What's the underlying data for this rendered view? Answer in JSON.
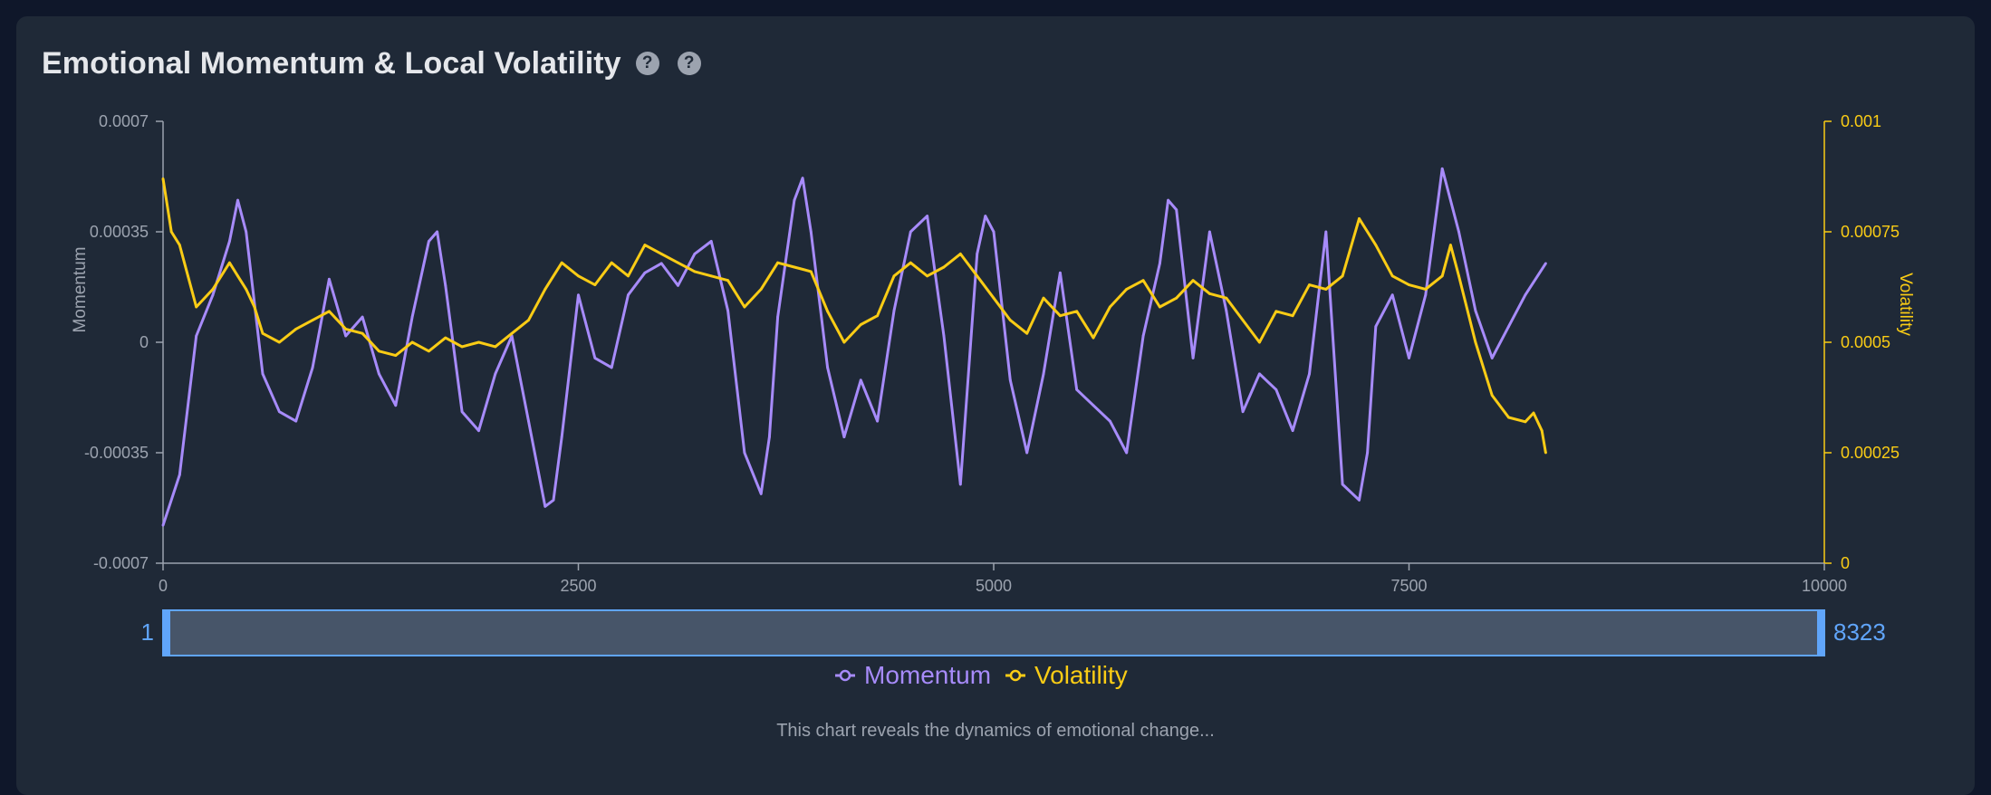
{
  "header": {
    "title": "Emotional Momentum & Local Volatility",
    "help_icons": [
      "question-circle-icon",
      "question-circle-icon"
    ]
  },
  "caption": "This chart reveals the dynamics of emotional change...",
  "colors": {
    "background": "#0f172a",
    "panel": "#1f2937",
    "momentum": "#a78bfa",
    "volatility": "#facc15",
    "axis": "#9ca3af",
    "brush": "#475569",
    "brush_accent": "#60a5fa"
  },
  "chart_data": {
    "type": "line",
    "title": "Emotional Momentum & Local Volatility",
    "xlabel": "",
    "xlim": [
      0,
      10000
    ],
    "x_ticks": [
      "0",
      "2500",
      "5000",
      "7500",
      "10000"
    ],
    "y_left": {
      "label": "Momentum",
      "range": [
        -0.0007,
        0.0007
      ],
      "ticks": [
        "0.0007",
        "0.00035",
        "0",
        "-0.00035",
        "-0.0007"
      ]
    },
    "y_right": {
      "label": "Volatility",
      "range": [
        0,
        0.001
      ],
      "ticks": [
        "0.001",
        "0.00075",
        "0.0005",
        "0.00025",
        "0"
      ]
    },
    "grid": false,
    "legend_position": "bottom-center",
    "brush": {
      "start_label": "1",
      "end_label": "8323",
      "start": 1,
      "end": 8323
    },
    "series": [
      {
        "name": "Momentum",
        "axis": "left",
        "x": [
          0,
          100,
          200,
          300,
          400,
          450,
          500,
          600,
          700,
          800,
          900,
          1000,
          1100,
          1200,
          1300,
          1400,
          1500,
          1600,
          1650,
          1700,
          1800,
          1900,
          2000,
          2100,
          2200,
          2300,
          2350,
          2400,
          2500,
          2600,
          2700,
          2800,
          2900,
          3000,
          3100,
          3200,
          3300,
          3400,
          3500,
          3600,
          3650,
          3700,
          3800,
          3850,
          3900,
          4000,
          4100,
          4200,
          4300,
          4400,
          4500,
          4600,
          4700,
          4800,
          4900,
          4950,
          5000,
          5100,
          5200,
          5300,
          5400,
          5500,
          5600,
          5700,
          5800,
          5900,
          6000,
          6050,
          6100,
          6200,
          6300,
          6400,
          6500,
          6600,
          6700,
          6800,
          6900,
          7000,
          7100,
          7200,
          7250,
          7300,
          7400,
          7500,
          7600,
          7700,
          7800,
          7900,
          8000,
          8100,
          8200,
          8323
        ],
        "y": [
          -0.00058,
          -0.00042,
          2e-05,
          0.00015,
          0.00032,
          0.00045,
          0.00035,
          -0.0001,
          -0.00022,
          -0.00025,
          -8e-05,
          0.0002,
          2e-05,
          8e-05,
          -0.0001,
          -0.0002,
          8e-05,
          0.00032,
          0.00035,
          0.00018,
          -0.00022,
          -0.00028,
          -0.0001,
          2e-05,
          -0.00025,
          -0.00052,
          -0.0005,
          -0.0003,
          0.00015,
          -5e-05,
          -8e-05,
          0.00015,
          0.00022,
          0.00025,
          0.00018,
          0.00028,
          0.00032,
          0.0001,
          -0.00035,
          -0.00048,
          -0.0003,
          8e-05,
          0.00045,
          0.00052,
          0.00035,
          -8e-05,
          -0.0003,
          -0.00012,
          -0.00025,
          0.0001,
          0.00035,
          0.0004,
          2e-05,
          -0.00045,
          0.00028,
          0.0004,
          0.00035,
          -0.00012,
          -0.00035,
          -0.0001,
          0.00022,
          -0.00015,
          -0.0002,
          -0.00025,
          -0.00035,
          2e-05,
          0.00025,
          0.00045,
          0.00042,
          -5e-05,
          0.00035,
          0.0001,
          -0.00022,
          -0.0001,
          -0.00015,
          -0.00028,
          -0.0001,
          0.00035,
          -0.00045,
          -0.0005,
          -0.00035,
          5e-05,
          0.00015,
          -5e-05,
          0.00015,
          0.00055,
          0.00035,
          0.0001,
          -5e-05,
          5e-05,
          0.00015,
          0.00025
        ]
      },
      {
        "name": "Volatility",
        "axis": "right",
        "x": [
          0,
          50,
          100,
          150,
          200,
          300,
          350,
          400,
          450,
          500,
          550,
          600,
          700,
          800,
          900,
          1000,
          1100,
          1200,
          1300,
          1400,
          1500,
          1600,
          1700,
          1800,
          1900,
          2000,
          2100,
          2200,
          2300,
          2400,
          2500,
          2600,
          2700,
          2800,
          2900,
          3000,
          3100,
          3200,
          3300,
          3400,
          3500,
          3600,
          3700,
          3800,
          3900,
          4000,
          4100,
          4200,
          4300,
          4400,
          4500,
          4600,
          4700,
          4800,
          4900,
          5000,
          5100,
          5200,
          5300,
          5400,
          5500,
          5600,
          5700,
          5800,
          5900,
          6000,
          6100,
          6200,
          6300,
          6400,
          6500,
          6600,
          6700,
          6800,
          6900,
          7000,
          7100,
          7200,
          7300,
          7400,
          7500,
          7600,
          7700,
          7750,
          7800,
          7900,
          8000,
          8100,
          8200,
          8250,
          8300,
          8323
        ],
        "y": [
          0.00087,
          0.00075,
          0.00072,
          0.00065,
          0.00058,
          0.00062,
          0.00065,
          0.00068,
          0.00065,
          0.00062,
          0.00058,
          0.00052,
          0.0005,
          0.00053,
          0.00055,
          0.00057,
          0.00053,
          0.00052,
          0.00048,
          0.00047,
          0.0005,
          0.00048,
          0.00051,
          0.00049,
          0.0005,
          0.00049,
          0.00052,
          0.00055,
          0.00062,
          0.00068,
          0.00065,
          0.00063,
          0.00068,
          0.00065,
          0.00072,
          0.0007,
          0.00068,
          0.00066,
          0.00065,
          0.00064,
          0.00058,
          0.00062,
          0.00068,
          0.00067,
          0.00066,
          0.00057,
          0.0005,
          0.00054,
          0.00056,
          0.00065,
          0.00068,
          0.00065,
          0.00067,
          0.0007,
          0.00065,
          0.0006,
          0.00055,
          0.00052,
          0.0006,
          0.00056,
          0.00057,
          0.00051,
          0.00058,
          0.00062,
          0.00064,
          0.00058,
          0.0006,
          0.00064,
          0.00061,
          0.0006,
          0.00055,
          0.0005,
          0.00057,
          0.00056,
          0.00063,
          0.00062,
          0.00065,
          0.00078,
          0.00072,
          0.00065,
          0.00063,
          0.00062,
          0.00065,
          0.00072,
          0.00065,
          0.0005,
          0.00038,
          0.00033,
          0.00032,
          0.00034,
          0.0003,
          0.00025
        ]
      }
    ]
  }
}
